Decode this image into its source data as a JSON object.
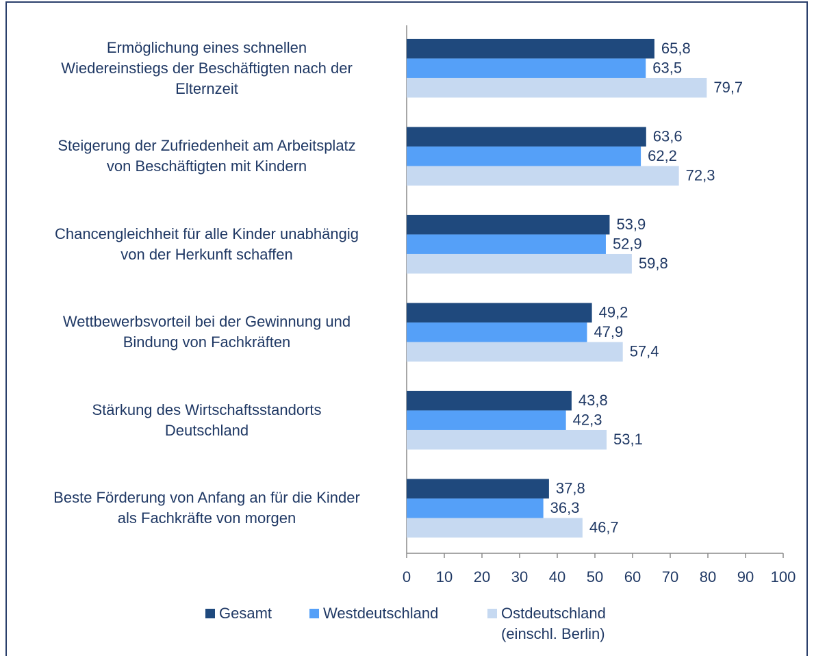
{
  "chart_data": {
    "type": "bar",
    "orientation": "horizontal",
    "categories": [
      "Ermöglichung eines schnellen\nWiedereinstiegs der Beschäftigten nach der\nElternzeit",
      "Steigerung der Zufriedenheit am Arbeitsplatz\nvon Beschäftigten mit Kindern",
      "Chancengleichheit für alle Kinder unabhängig\nvon der Herkunft schaffen",
      "Wettbewerbsvorteil bei der Gewinnung und\nBindung von Fachkräften",
      "Stärkung des Wirtschaftsstandorts\nDeutschland",
      "Beste Förderung von Anfang an für die Kinder\nals Fachkräfte von morgen"
    ],
    "series": [
      {
        "name": "Gesamt",
        "color": "#1f497d",
        "values": [
          65.8,
          63.6,
          53.9,
          49.2,
          43.8,
          37.8
        ],
        "value_labels": [
          "65,8",
          "63,6",
          "53,9",
          "49,2",
          "43,8",
          "37,8"
        ]
      },
      {
        "name": "Westdeutschland",
        "color": "#55a0f8",
        "values": [
          63.5,
          62.2,
          52.9,
          47.9,
          42.3,
          36.3
        ],
        "value_labels": [
          "63,5",
          "62,2",
          "52,9",
          "47,9",
          "42,3",
          "36,3"
        ]
      },
      {
        "name": "Ostdeutschland\n(einschl. Berlin)",
        "color": "#c6d9f1",
        "values": [
          79.7,
          72.3,
          59.8,
          57.4,
          53.1,
          46.7
        ],
        "value_labels": [
          "79,7",
          "72,3",
          "59,8",
          "57,4",
          "53,1",
          "46,7"
        ]
      }
    ],
    "xlim": [
      0,
      100
    ],
    "xticks": [
      0,
      10,
      20,
      30,
      40,
      50,
      60,
      70,
      80,
      90,
      100
    ],
    "legend": "bottom",
    "grid": false
  }
}
